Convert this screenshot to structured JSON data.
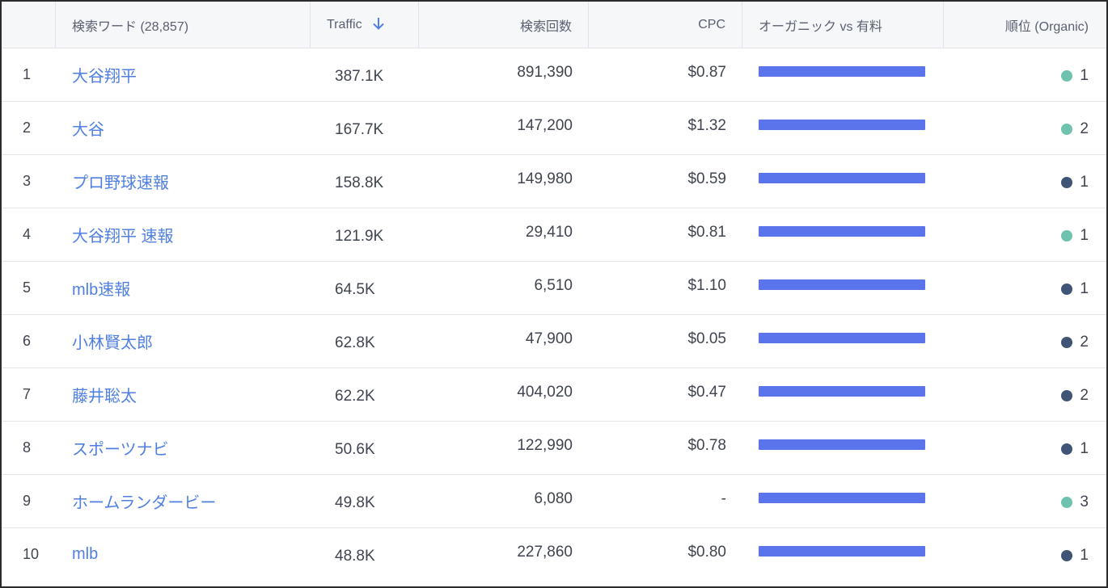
{
  "table": {
    "headers": {
      "keyword": "検索ワード (28,857)",
      "traffic": "Traffic",
      "traffic_sort_icon": "arrow-down-icon",
      "search_volume": "検索回数",
      "cpc": "CPC",
      "organic_vs_paid": "オーガニック vs 有料",
      "rank": "順位 (Organic)"
    },
    "colors": {
      "keyword_link": "#4f7fe0",
      "bar": "#5a74ec",
      "rank_dot_teal": "#6fc3ae",
      "rank_dot_navy": "#3f5476"
    },
    "rows": [
      {
        "index": "1",
        "keyword": "大谷翔平",
        "traffic": "387.1K",
        "searches": "891,390",
        "cpc": "$0.87",
        "organic_share": 1.0,
        "rank": "1",
        "dot": "teal"
      },
      {
        "index": "2",
        "keyword": "大谷",
        "traffic": "167.7K",
        "searches": "147,200",
        "cpc": "$1.32",
        "organic_share": 1.0,
        "rank": "2",
        "dot": "teal"
      },
      {
        "index": "3",
        "keyword": "プロ野球速報",
        "traffic": "158.8K",
        "searches": "149,980",
        "cpc": "$0.59",
        "organic_share": 1.0,
        "rank": "1",
        "dot": "navy"
      },
      {
        "index": "4",
        "keyword": "大谷翔平 速報",
        "traffic": "121.9K",
        "searches": "29,410",
        "cpc": "$0.81",
        "organic_share": 1.0,
        "rank": "1",
        "dot": "teal"
      },
      {
        "index": "5",
        "keyword": "mlb速報",
        "traffic": "64.5K",
        "searches": "6,510",
        "cpc": "$1.10",
        "organic_share": 1.0,
        "rank": "1",
        "dot": "navy"
      },
      {
        "index": "6",
        "keyword": "小林賢太郎",
        "traffic": "62.8K",
        "searches": "47,900",
        "cpc": "$0.05",
        "organic_share": 1.0,
        "rank": "2",
        "dot": "navy"
      },
      {
        "index": "7",
        "keyword": "藤井聡太",
        "traffic": "62.2K",
        "searches": "404,020",
        "cpc": "$0.47",
        "organic_share": 1.0,
        "rank": "2",
        "dot": "navy"
      },
      {
        "index": "8",
        "keyword": "スポーツナビ",
        "traffic": "50.6K",
        "searches": "122,990",
        "cpc": "$0.78",
        "organic_share": 1.0,
        "rank": "1",
        "dot": "navy"
      },
      {
        "index": "9",
        "keyword": "ホームランダービー",
        "traffic": "49.8K",
        "searches": "6,080",
        "cpc": "-",
        "organic_share": 1.0,
        "rank": "3",
        "dot": "teal"
      },
      {
        "index": "10",
        "keyword": "mlb",
        "traffic": "48.8K",
        "searches": "227,860",
        "cpc": "$0.80",
        "organic_share": 1.0,
        "rank": "1",
        "dot": "navy"
      }
    ]
  }
}
